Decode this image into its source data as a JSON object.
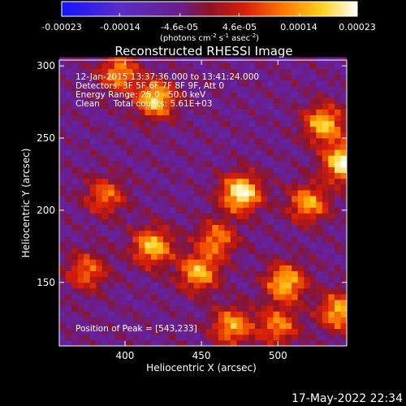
{
  "chart_data": {
    "type": "heatmap",
    "title": "Reconstructed RHESSI Image",
    "xlabel": "Heliocentric X (arcsec)",
    "ylabel": "Heliocentric Y (arcsec)",
    "xlim": [
      357,
      545
    ],
    "ylim": [
      106,
      304
    ],
    "x_ticks": [
      400,
      450,
      500
    ],
    "x_tick_labels": [
      "400",
      "450",
      "500"
    ],
    "y_ticks": [
      150,
      200,
      250,
      300
    ],
    "y_tick_labels": [
      "150",
      "200",
      "250",
      "300"
    ],
    "colorbar": {
      "range": [
        -0.00023,
        0.00023
      ],
      "ticks": [
        -0.00023,
        -0.00014,
        -4.6e-05,
        4.6e-05,
        0.00014,
        0.00023
      ],
      "tick_labels": [
        "-0.00023",
        "-0.00014",
        "-4.6e-05",
        "4.6e-05",
        "0.00014",
        "0.00023"
      ],
      "unit_label": [
        "(photons cm",
        "-2",
        " s",
        "-1",
        " asec",
        "-2",
        ")"
      ]
    },
    "info_lines": [
      "12-Jan-2015 13:37:36.000 to 13:41:24.000",
      "Detectors: 3F 5F 6F 7F 8F 9F, Att 0",
      "Energy Range: 25.0 - 50.0 keV",
      "Clean     Total counts: 5.61E+03"
    ],
    "peak_annotation": "Position of Peak = [543,233]",
    "peak_position": [
      543,
      233
    ],
    "timestamp": "17-May-2022 22:34",
    "grid": false,
    "sources": [
      {
        "x": 476,
        "y": 212,
        "peak": 1.0
      },
      {
        "x": 420,
        "y": 277,
        "peak": 0.85
      },
      {
        "x": 396,
        "y": 295,
        "peak": 0.65
      },
      {
        "x": 543,
        "y": 233,
        "peak": 1.0
      },
      {
        "x": 530,
        "y": 260,
        "peak": 0.8
      },
      {
        "x": 418,
        "y": 175,
        "peak": 0.8
      },
      {
        "x": 448,
        "y": 157,
        "peak": 0.75
      },
      {
        "x": 470,
        "y": 120,
        "peak": 0.7
      },
      {
        "x": 505,
        "y": 150,
        "peak": 0.8
      },
      {
        "x": 375,
        "y": 158,
        "peak": 0.55
      },
      {
        "x": 387,
        "y": 210,
        "peak": 0.55
      },
      {
        "x": 460,
        "y": 180,
        "peak": 0.6
      },
      {
        "x": 520,
        "y": 205,
        "peak": 0.7
      },
      {
        "x": 500,
        "y": 120,
        "peak": 0.6
      },
      {
        "x": 540,
        "y": 130,
        "peak": 0.75
      }
    ]
  }
}
